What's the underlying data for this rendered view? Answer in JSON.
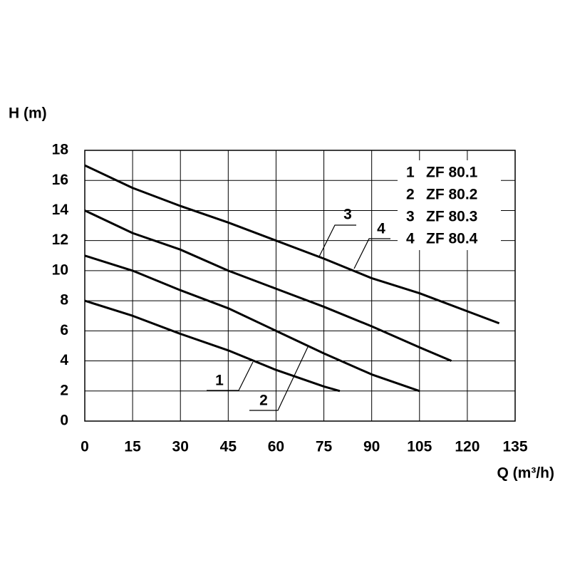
{
  "chart_data": {
    "type": "line",
    "y_label": "H (m)",
    "x_label": "Q (m³/h)",
    "xlim": [
      0,
      135
    ],
    "xticks": [
      0,
      15,
      30,
      45,
      60,
      75,
      90,
      105,
      120,
      135
    ],
    "ylim": [
      0,
      18
    ],
    "yticks": [
      0,
      2,
      4,
      6,
      8,
      10,
      12,
      14,
      16,
      18
    ],
    "grid": true,
    "legend": "upper right",
    "series": [
      {
        "label": "1",
        "name": "ZF 80.1",
        "color": "#000000",
        "x": [
          0,
          15,
          30,
          45,
          60,
          75,
          80
        ],
        "values": [
          8,
          7,
          5.8,
          4.7,
          3.4,
          2.3,
          2
        ]
      },
      {
        "label": "2",
        "name": "ZF 80.2",
        "color": "#000000",
        "x": [
          0,
          15,
          30,
          45,
          60,
          75,
          90,
          105
        ],
        "values": [
          11,
          10,
          8.7,
          7.5,
          6,
          4.5,
          3.1,
          2
        ]
      },
      {
        "label": "3",
        "name": "ZF 80.3",
        "color": "#000000",
        "x": [
          0,
          15,
          30,
          45,
          60,
          75,
          90,
          105,
          115
        ],
        "values": [
          14,
          12.5,
          11.4,
          10,
          8.8,
          7.6,
          6.3,
          4.9,
          4
        ]
      },
      {
        "label": "4",
        "name": "ZF 80.4",
        "color": "#000000",
        "x": [
          0,
          15,
          30,
          45,
          60,
          75,
          90,
          105,
          120,
          130
        ],
        "values": [
          17,
          15.5,
          14.3,
          13.2,
          12,
          10.8,
          9.5,
          8.5,
          7.3,
          6.5
        ]
      }
    ]
  }
}
